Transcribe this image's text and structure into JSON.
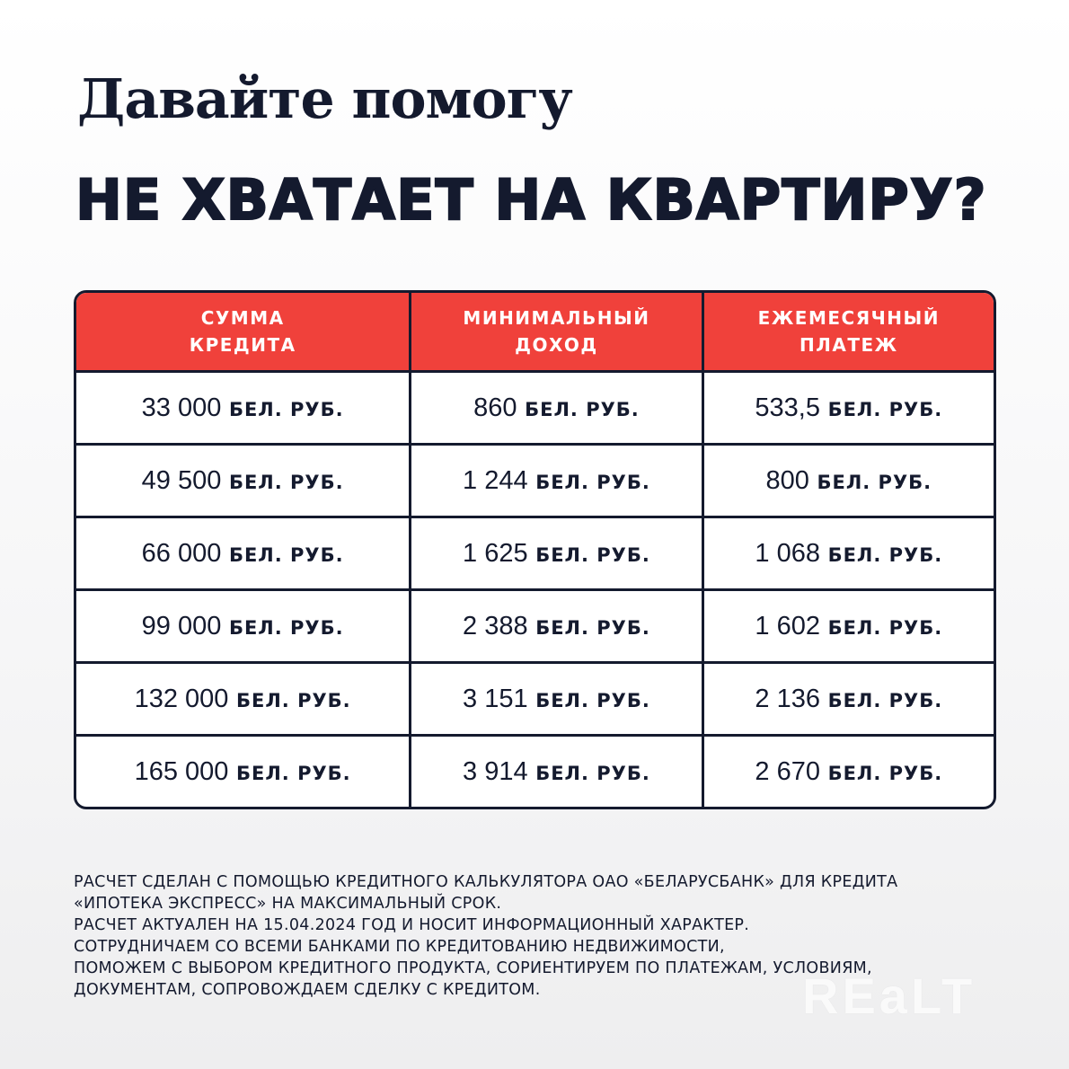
{
  "title": "Давайте помогу",
  "subtitle": "НЕ ХВАТАЕТ НА КВАРТИРУ?",
  "table": {
    "headers": [
      [
        "СУММА",
        "КРЕДИТА"
      ],
      [
        "МИНИМАЛЬНЫЙ",
        "ДОХОД"
      ],
      [
        "ЕЖЕМЕСЯЧНЫЙ",
        "ПЛАТЕЖ"
      ]
    ],
    "unit": "БЕЛ. РУБ.",
    "rows": [
      [
        "33 000",
        "860",
        "533,5"
      ],
      [
        "49 500",
        "1 244",
        "800"
      ],
      [
        "66 000",
        "1 625",
        "1 068"
      ],
      [
        "99 000",
        "2 388",
        "1 602"
      ],
      [
        "132 000",
        "3 151",
        "2 136"
      ],
      [
        "165 000",
        "3 914",
        "2 670"
      ]
    ]
  },
  "notes": [
    "РАСЧЕТ СДЕЛАН С ПОМОЩЬЮ КРЕДИТНОГО КАЛЬКУЛЯТОРА ОАО «БЕЛАРУСБАНК» ДЛЯ КРЕДИТА",
    "«ИПОТЕКА ЭКСПРЕСС» НА МАКСИМАЛЬНЫЙ СРОК.",
    "РАСЧЕТ АКТУАЛЕН НА 15.04.2024 ГОД И НОСИТ ИНФОРМАЦИОННЫЙ ХАРАКТЕР.",
    "СОТРУДНИЧАЕМ СО ВСЕМИ БАНКАМИ ПО КРЕДИТОВАНИЮ НЕДВИЖИМОСТИ,",
    "ПОМОЖЕМ С ВЫБОРОМ КРЕДИТНОГО ПРОДУКТА, СОРИЕНТИРУЕМ ПО ПЛАТЕЖАМ, УСЛОВИЯМ,",
    "ДОКУМЕНТАМ, СОПРОВОЖДАЕМ СДЕЛКУ С КРЕДИТОМ."
  ],
  "watermark": "REaLT",
  "colors": {
    "accent": "#f0413b",
    "text": "#141a2e"
  }
}
